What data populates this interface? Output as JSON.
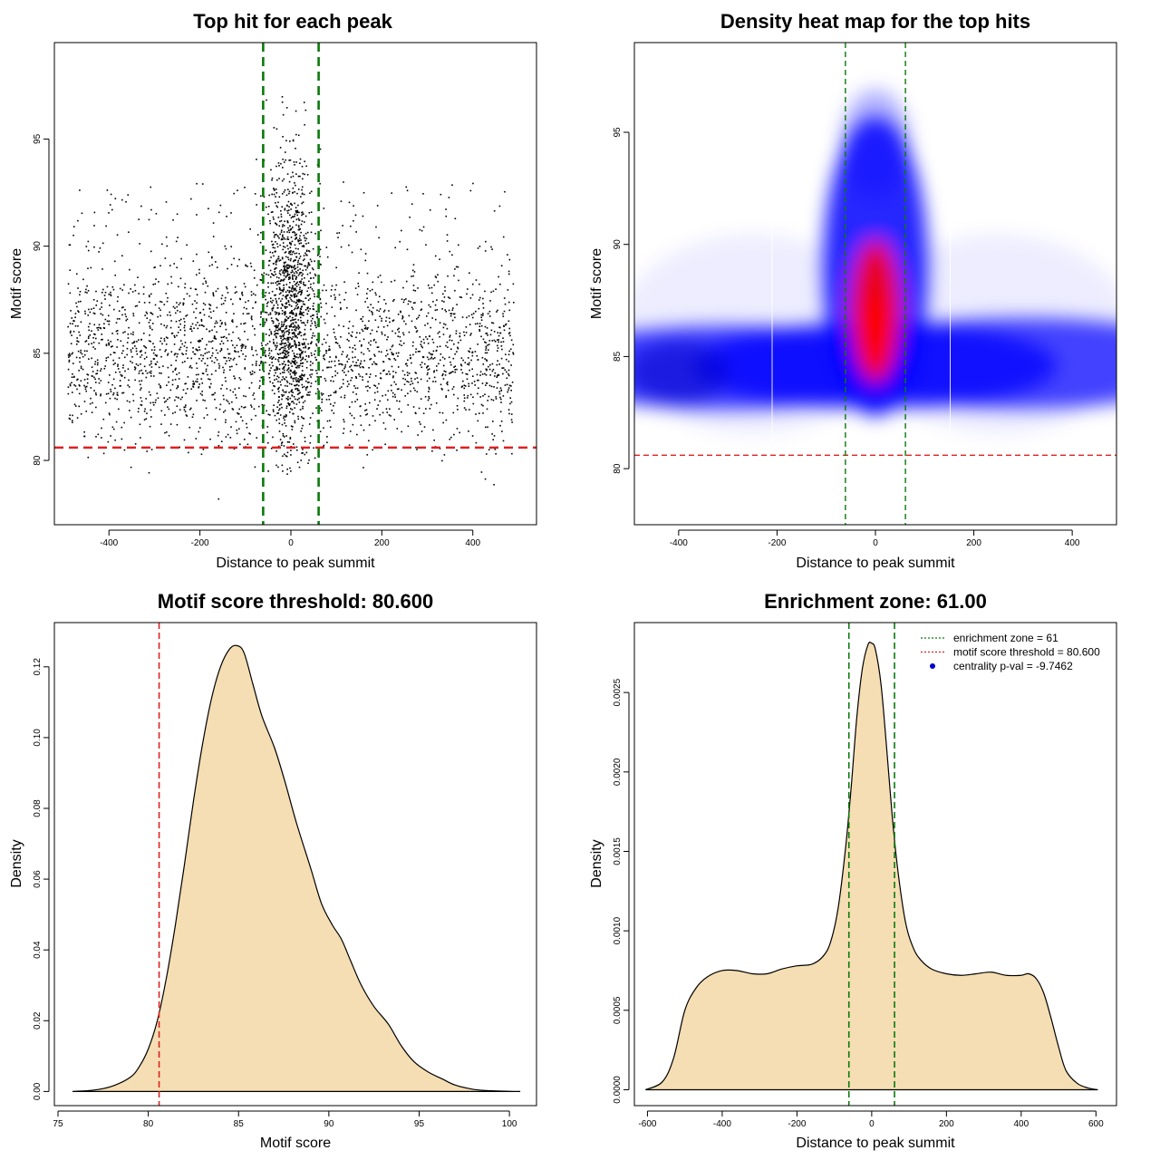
{
  "chart_data": [
    {
      "type": "scatter",
      "title": "Top hit for each peak",
      "xlabel": "Distance to peak summit",
      "ylabel": "Motif score",
      "xlim": [
        -520,
        540
      ],
      "ylim": [
        77,
        99.5
      ],
      "xticks": [
        "-400",
        "-200",
        "0",
        "200",
        "400"
      ],
      "xtick_values": [
        -400,
        -200,
        0,
        200,
        400
      ],
      "yticks": [
        "80",
        "85",
        "90",
        "95"
      ],
      "ytick_values": [
        80,
        85,
        90,
        95
      ],
      "hlines": [
        {
          "y": 80.6,
          "color": "#e02020",
          "style": "dashed"
        }
      ],
      "vlines": [
        {
          "x": -61,
          "color": "#0a7a0a",
          "style": "dashed"
        },
        {
          "x": 61,
          "color": "#0a7a0a",
          "style": "dashed"
        }
      ],
      "points": "approx. 4000 points; flat band -490..490 with score ~80-89 (mode ~84.5), dense central column around x=0 reaching score ~97",
      "colors": {
        "points": "#000000"
      }
    },
    {
      "type": "heatmap",
      "title": "Density heat map for the top hits",
      "xlabel": "Distance to peak summit",
      "ylabel": "Motif score",
      "xlim": [
        -490,
        490
      ],
      "ylim": [
        77.5,
        99
      ],
      "xticks": [
        "-400",
        "-200",
        "0",
        "200",
        "400"
      ],
      "xtick_values": [
        -400,
        -200,
        0,
        200,
        400
      ],
      "yticks": [
        "80",
        "85",
        "90",
        "95"
      ],
      "ytick_values": [
        80,
        85,
        90,
        95
      ],
      "hlines": [
        {
          "y": 80.6,
          "color": "#e02020",
          "style": "dashed"
        }
      ],
      "vlines": [
        {
          "x": -61,
          "color": "#0a7a0a",
          "style": "dashed"
        },
        {
          "x": 61,
          "color": "#0a7a0a",
          "style": "dashed"
        }
      ],
      "palette": [
        "#ffffff",
        "#0000ff",
        "#ff0000"
      ],
      "density_peak": {
        "x": 0,
        "y": 86
      }
    },
    {
      "type": "area",
      "title": "Motif score threshold: 80.600",
      "xlabel": "Motif score",
      "ylabel": "Density",
      "xlim": [
        74.8,
        101.5
      ],
      "ylim": [
        -0.004,
        0.1325
      ],
      "xticks": [
        "75",
        "80",
        "85",
        "90",
        "95",
        "100"
      ],
      "xtick_values": [
        75,
        80,
        85,
        90,
        95,
        100
      ],
      "yticks": [
        "0.00",
        "0.02",
        "0.04",
        "0.06",
        "0.08",
        "0.10",
        "0.12"
      ],
      "ytick_values": [
        0,
        0.02,
        0.04,
        0.06,
        0.08,
        0.1,
        0.12
      ],
      "vlines": [
        {
          "x": 80.6,
          "color": "#e02020",
          "style": "dashed"
        }
      ],
      "colors": {
        "fill": "#f5deb3",
        "line": "#000000"
      },
      "x": [
        75.8,
        77,
        78,
        79,
        79.5,
        80,
        80.5,
        81,
        81.5,
        82,
        82.5,
        83,
        83.5,
        84,
        84.5,
        84.9,
        85.3,
        85.8,
        86.3,
        87,
        87.6,
        88.2,
        89,
        89.6,
        90.2,
        90.7,
        91.2,
        91.8,
        92.5,
        93.3,
        94,
        94.7,
        95.5,
        96.3,
        97,
        98,
        99,
        100,
        100.6
      ],
      "y": [
        0,
        0.0004,
        0.0015,
        0.004,
        0.007,
        0.012,
        0.02,
        0.032,
        0.047,
        0.064,
        0.082,
        0.098,
        0.111,
        0.12,
        0.125,
        0.126,
        0.124,
        0.115,
        0.106,
        0.097,
        0.087,
        0.076,
        0.063,
        0.053,
        0.047,
        0.043,
        0.037,
        0.03,
        0.024,
        0.019,
        0.013,
        0.0085,
        0.0055,
        0.0035,
        0.0018,
        0.0006,
        0.0002,
        5e-05,
        0
      ]
    },
    {
      "type": "area",
      "title": "Enrichment zone: 61.00",
      "xlabel": "Distance to peak summit",
      "ylabel": "Density",
      "xlim": [
        -635,
        655
      ],
      "ylim": [
        -0.0001,
        0.00294
      ],
      "xticks": [
        "-600",
        "-400",
        "-200",
        "0",
        "200",
        "400",
        "600"
      ],
      "xtick_values": [
        -600,
        -400,
        -200,
        0,
        200,
        400,
        600
      ],
      "yticks": [
        "0.0000",
        "0.0005",
        "0.0010",
        "0.0015",
        "0.0020",
        "0.0025"
      ],
      "ytick_values": [
        0,
        0.0005,
        0.001,
        0.0015,
        0.002,
        0.0025
      ],
      "vlines": [
        {
          "x": -61,
          "color": "#0a7a0a",
          "style": "dashed"
        },
        {
          "x": 61,
          "color": "#0a7a0a",
          "style": "dashed"
        }
      ],
      "colors": {
        "fill": "#f5deb3",
        "line": "#000000"
      },
      "legend": {
        "position": "top-right",
        "entries": [
          {
            "label": "enrichment zone = 61",
            "color": "#0a7a0a",
            "kind": "dotted-line"
          },
          {
            "label": "motif score threshold = 80.600",
            "color": "#e02020",
            "kind": "dotted-line"
          },
          {
            "label": "centrality p-val = -9.7462",
            "color": "#0000cc",
            "kind": "point"
          }
        ]
      },
      "x": [
        -605,
        -560,
        -530,
        -500,
        -470,
        -440,
        -400,
        -360,
        -320,
        -280,
        -240,
        -200,
        -160,
        -130,
        -110,
        -90,
        -70,
        -55,
        -40,
        -25,
        -10,
        0,
        10,
        25,
        40,
        55,
        70,
        90,
        110,
        130,
        160,
        200,
        240,
        280,
        320,
        360,
        400,
        420,
        440,
        460,
        480,
        500,
        520,
        550,
        580,
        605
      ],
      "y": [
        0,
        5e-05,
        0.0002,
        0.0005,
        0.00064,
        0.00071,
        0.00075,
        0.00075,
        0.00073,
        0.00073,
        0.00076,
        0.00078,
        0.00079,
        0.00084,
        0.00093,
        0.00114,
        0.00152,
        0.0019,
        0.00234,
        0.00265,
        0.0028,
        0.00281,
        0.00277,
        0.00255,
        0.00215,
        0.00172,
        0.00138,
        0.00106,
        0.0009,
        0.00082,
        0.00076,
        0.00073,
        0.00072,
        0.00073,
        0.00074,
        0.00072,
        0.00072,
        0.00073,
        0.0007,
        0.00061,
        0.00045,
        0.00027,
        0.00012,
        4e-05,
        1e-05,
        0
      ]
    }
  ]
}
